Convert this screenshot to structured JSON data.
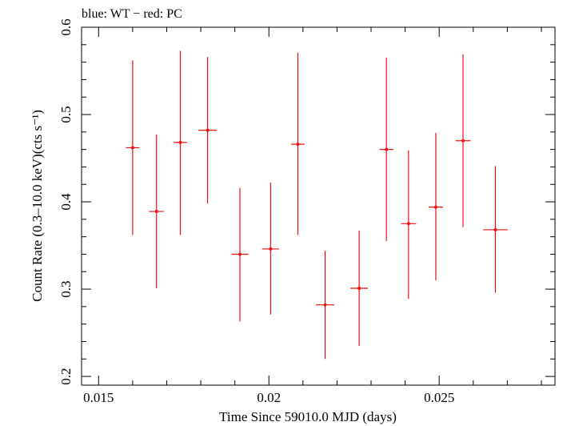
{
  "chart_data": {
    "type": "scatter",
    "title": "blue: WT − red: PC",
    "xlabel": "Time Since 59010.0 MJD (days)",
    "ylabel": "Count Rate (0.3–10.0 keV)(cts s⁻¹)",
    "xlim": [
      0.0145,
      0.0284
    ],
    "ylim": [
      0.19,
      0.6
    ],
    "x_ticks": [
      0.015,
      0.02,
      0.025
    ],
    "x_tick_labels": [
      "0.015",
      "0.02",
      "0.025"
    ],
    "y_ticks": [
      0.2,
      0.3,
      0.4,
      0.5,
      0.6
    ],
    "y_tick_labels": [
      "0.2",
      "0.3",
      "0.4",
      "0.5",
      "0.6"
    ],
    "grid": false,
    "series": [
      {
        "name": "PC",
        "color": "#ee1111",
        "points": [
          {
            "x": 0.016,
            "xerr": 0.0002,
            "y": 0.462,
            "ylo": 0.362,
            "yhi": 0.562
          },
          {
            "x": 0.0167,
            "xerr": 0.00022,
            "y": 0.389,
            "ylo": 0.301,
            "yhi": 0.477
          },
          {
            "x": 0.0174,
            "xerr": 0.0002,
            "y": 0.468,
            "ylo": 0.362,
            "yhi": 0.573
          },
          {
            "x": 0.0182,
            "xerr": 0.00027,
            "y": 0.482,
            "ylo": 0.398,
            "yhi": 0.566
          },
          {
            "x": 0.01915,
            "xerr": 0.00025,
            "y": 0.34,
            "ylo": 0.263,
            "yhi": 0.416
          },
          {
            "x": 0.02005,
            "xerr": 0.00025,
            "y": 0.346,
            "ylo": 0.271,
            "yhi": 0.422
          },
          {
            "x": 0.02085,
            "xerr": 0.0002,
            "y": 0.466,
            "ylo": 0.362,
            "yhi": 0.571
          },
          {
            "x": 0.02165,
            "xerr": 0.00027,
            "y": 0.282,
            "ylo": 0.22,
            "yhi": 0.344
          },
          {
            "x": 0.02265,
            "xerr": 0.00026,
            "y": 0.301,
            "ylo": 0.235,
            "yhi": 0.367
          },
          {
            "x": 0.02345,
            "xerr": 0.0002,
            "y": 0.46,
            "ylo": 0.355,
            "yhi": 0.565
          },
          {
            "x": 0.0241,
            "xerr": 0.00022,
            "y": 0.375,
            "ylo": 0.289,
            "yhi": 0.459
          },
          {
            "x": 0.0249,
            "xerr": 0.00021,
            "y": 0.394,
            "ylo": 0.31,
            "yhi": 0.479
          },
          {
            "x": 0.0257,
            "xerr": 0.00022,
            "y": 0.47,
            "ylo": 0.371,
            "yhi": 0.569
          },
          {
            "x": 0.02665,
            "xerr": 0.00036,
            "y": 0.368,
            "ylo": 0.296,
            "yhi": 0.441
          }
        ]
      }
    ]
  }
}
